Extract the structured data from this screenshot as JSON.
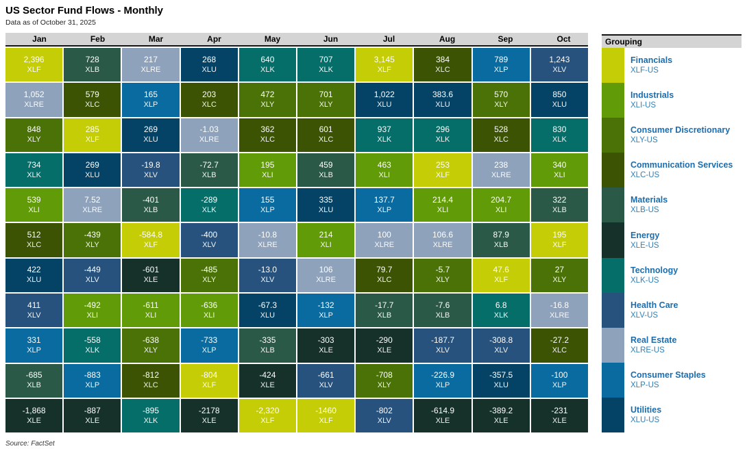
{
  "header": {
    "title": "US Sector Fund Flows - Monthly",
    "subtitle": "Data as of October 31, 2025"
  },
  "footer": {
    "source": "Source: FactSet"
  },
  "legend": {
    "title": "Grouping",
    "items": [
      {
        "name": "Financials",
        "ticker": "XLF-US",
        "color": "#c4cd05"
      },
      {
        "name": "Industrials",
        "ticker": "XLI-US",
        "color": "#619b08"
      },
      {
        "name": "Consumer Discretionary",
        "ticker": "XLY-US",
        "color": "#4a7206"
      },
      {
        "name": "Communication Services",
        "ticker": "XLC-US",
        "color": "#3b5302"
      },
      {
        "name": "Materials",
        "ticker": "XLB-US",
        "color": "#2b5947"
      },
      {
        "name": "Energy",
        "ticker": "XLE-US",
        "color": "#16312a"
      },
      {
        "name": "Technology",
        "ticker": "XLK-US",
        "color": "#056e69"
      },
      {
        "name": "Health Care",
        "ticker": "XLV-US",
        "color": "#27527d"
      },
      {
        "name": "Real Estate",
        "ticker": "XLRE-US",
        "color": "#8fa2bb"
      },
      {
        "name": "Consumer Staples",
        "ticker": "XLP-US",
        "color": "#0a6ba0"
      },
      {
        "name": "Utilities",
        "ticker": "XLU-US",
        "color": "#054366"
      }
    ]
  },
  "chart_data": {
    "type": "heatmap",
    "title": "US Sector Fund Flows - Monthly",
    "subtitle": "Data as of October 31, 2025",
    "legend_position": "right",
    "columns": [
      "Jan",
      "Feb",
      "Mar",
      "Apr",
      "May",
      "Jun",
      "Jul",
      "Aug",
      "Sep",
      "Oct"
    ],
    "sector_colors": {
      "XLF": "#c4cd05",
      "XLI": "#619b08",
      "XLY": "#4a7206",
      "XLC": "#3b5302",
      "XLB": "#2b5947",
      "XLE": "#16312a",
      "XLK": "#056e69",
      "XLV": "#27527d",
      "XLRE": "#8fa2bb",
      "XLP": "#0a6ba0",
      "XLU": "#054366"
    },
    "rows": [
      [
        {
          "value": "2,396",
          "ticker": "XLF"
        },
        {
          "value": "728",
          "ticker": "XLB"
        },
        {
          "value": "217",
          "ticker": "XLRE"
        },
        {
          "value": "268",
          "ticker": "XLU"
        },
        {
          "value": "640",
          "ticker": "XLK"
        },
        {
          "value": "707",
          "ticker": "XLK"
        },
        {
          "value": "3,145",
          "ticker": "XLF"
        },
        {
          "value": "384",
          "ticker": "XLC"
        },
        {
          "value": "789",
          "ticker": "XLP"
        },
        {
          "value": "1,243",
          "ticker": "XLV"
        }
      ],
      [
        {
          "value": "1,052",
          "ticker": "XLRE"
        },
        {
          "value": "579",
          "ticker": "XLC"
        },
        {
          "value": "165",
          "ticker": "XLP"
        },
        {
          "value": "203",
          "ticker": "XLC"
        },
        {
          "value": "472",
          "ticker": "XLY"
        },
        {
          "value": "701",
          "ticker": "XLY"
        },
        {
          "value": "1,022",
          "ticker": "XLU"
        },
        {
          "value": "383.6",
          "ticker": "XLU"
        },
        {
          "value": "570",
          "ticker": "XLY"
        },
        {
          "value": "850",
          "ticker": "XLU"
        }
      ],
      [
        {
          "value": "848",
          "ticker": "XLY"
        },
        {
          "value": "285",
          "ticker": "XLF"
        },
        {
          "value": "269",
          "ticker": "XLU"
        },
        {
          "value": "-1.03",
          "ticker": "XLRE"
        },
        {
          "value": "362",
          "ticker": "XLC"
        },
        {
          "value": "601",
          "ticker": "XLC"
        },
        {
          "value": "937",
          "ticker": "XLK"
        },
        {
          "value": "296",
          "ticker": "XLK"
        },
        {
          "value": "528",
          "ticker": "XLC"
        },
        {
          "value": "830",
          "ticker": "XLK"
        }
      ],
      [
        {
          "value": "734",
          "ticker": "XLK"
        },
        {
          "value": "269",
          "ticker": "XLU"
        },
        {
          "value": "-19.8",
          "ticker": "XLV"
        },
        {
          "value": "-72.7",
          "ticker": "XLB"
        },
        {
          "value": "195",
          "ticker": "XLI"
        },
        {
          "value": "459",
          "ticker": "XLB"
        },
        {
          "value": "463",
          "ticker": "XLI"
        },
        {
          "value": "253",
          "ticker": "XLF"
        },
        {
          "value": "238",
          "ticker": "XLRE"
        },
        {
          "value": "340",
          "ticker": "XLI"
        }
      ],
      [
        {
          "value": "539",
          "ticker": "XLI"
        },
        {
          "value": "7.52",
          "ticker": "XLRE"
        },
        {
          "value": "-401",
          "ticker": "XLB"
        },
        {
          "value": "-289",
          "ticker": "XLK"
        },
        {
          "value": "155",
          "ticker": "XLP"
        },
        {
          "value": "335",
          "ticker": "XLU"
        },
        {
          "value": "137.7",
          "ticker": "XLP"
        },
        {
          "value": "214.4",
          "ticker": "XLI"
        },
        {
          "value": "204.7",
          "ticker": "XLI"
        },
        {
          "value": "322",
          "ticker": "XLB"
        }
      ],
      [
        {
          "value": "512",
          "ticker": "XLC"
        },
        {
          "value": "-439",
          "ticker": "XLY"
        },
        {
          "value": "-584.8",
          "ticker": "XLF"
        },
        {
          "value": "-400",
          "ticker": "XLV"
        },
        {
          "value": "-10.8",
          "ticker": "XLRE"
        },
        {
          "value": "214",
          "ticker": "XLI"
        },
        {
          "value": "100",
          "ticker": "XLRE"
        },
        {
          "value": "106.6",
          "ticker": "XLRE"
        },
        {
          "value": "87.9",
          "ticker": "XLB"
        },
        {
          "value": "195",
          "ticker": "XLF"
        }
      ],
      [
        {
          "value": "422",
          "ticker": "XLU"
        },
        {
          "value": "-449",
          "ticker": "XLV"
        },
        {
          "value": "-601",
          "ticker": "XLE"
        },
        {
          "value": "-485",
          "ticker": "XLY"
        },
        {
          "value": "-13.0",
          "ticker": "XLV"
        },
        {
          "value": "106",
          "ticker": "XLRE"
        },
        {
          "value": "79.7",
          "ticker": "XLC"
        },
        {
          "value": "-5.7",
          "ticker": "XLY"
        },
        {
          "value": "47.6",
          "ticker": "XLF"
        },
        {
          "value": "27",
          "ticker": "XLY"
        }
      ],
      [
        {
          "value": "411",
          "ticker": "XLV"
        },
        {
          "value": "-492",
          "ticker": "XLI"
        },
        {
          "value": "-611",
          "ticker": "XLI"
        },
        {
          "value": "-636",
          "ticker": "XLI"
        },
        {
          "value": "-67.3",
          "ticker": "XLU"
        },
        {
          "value": "-132",
          "ticker": "XLP"
        },
        {
          "value": "-17.7",
          "ticker": "XLB"
        },
        {
          "value": "-7.6",
          "ticker": "XLB"
        },
        {
          "value": "6.8",
          "ticker": "XLK"
        },
        {
          "value": "-16.8",
          "ticker": "XLRE"
        }
      ],
      [
        {
          "value": "331",
          "ticker": "XLP"
        },
        {
          "value": "-558",
          "ticker": "XLK"
        },
        {
          "value": "-638",
          "ticker": "XLY"
        },
        {
          "value": "-733",
          "ticker": "XLP"
        },
        {
          "value": "-335",
          "ticker": "XLB"
        },
        {
          "value": "-303",
          "ticker": "XLE"
        },
        {
          "value": "-290",
          "ticker": "XLE"
        },
        {
          "value": "-187.7",
          "ticker": "XLV"
        },
        {
          "value": "-308.8",
          "ticker": "XLV"
        },
        {
          "value": "-27.2",
          "ticker": "XLC"
        }
      ],
      [
        {
          "value": "-685",
          "ticker": "XLB"
        },
        {
          "value": "-883",
          "ticker": "XLP"
        },
        {
          "value": "-812",
          "ticker": "XLC"
        },
        {
          "value": "-804",
          "ticker": "XLF"
        },
        {
          "value": "-424",
          "ticker": "XLE"
        },
        {
          "value": "-661",
          "ticker": "XLV"
        },
        {
          "value": "-708",
          "ticker": "XLY"
        },
        {
          "value": "-226.9",
          "ticker": "XLP"
        },
        {
          "value": "-357.5",
          "ticker": "XLU"
        },
        {
          "value": "-100",
          "ticker": "XLP"
        }
      ],
      [
        {
          "value": "-1,868",
          "ticker": "XLE"
        },
        {
          "value": "-887",
          "ticker": "XLE"
        },
        {
          "value": "-895",
          "ticker": "XLK"
        },
        {
          "value": "-2178",
          "ticker": "XLE"
        },
        {
          "value": "-2,320",
          "ticker": "XLF"
        },
        {
          "value": "-1460",
          "ticker": "XLF"
        },
        {
          "value": "-802",
          "ticker": "XLV"
        },
        {
          "value": "-614.9",
          "ticker": "XLE"
        },
        {
          "value": "-389.2",
          "ticker": "XLE"
        },
        {
          "value": "-231",
          "ticker": "XLE"
        }
      ]
    ]
  }
}
